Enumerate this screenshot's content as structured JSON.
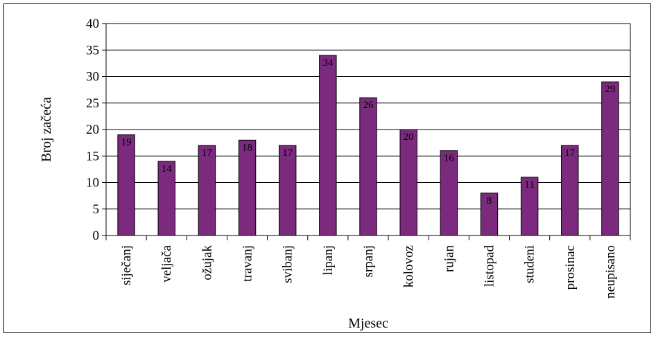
{
  "chart_data": {
    "type": "bar",
    "title": "",
    "xlabel": "Mjesec",
    "ylabel": "Broj začeća",
    "ylim": [
      0,
      40
    ],
    "yticks": [
      0,
      5,
      10,
      15,
      20,
      25,
      30,
      35,
      40
    ],
    "grid": true,
    "legend": "none",
    "categories": [
      "siječanj",
      "veljača",
      "ožujak",
      "travanj",
      "svibanj",
      "lipanj",
      "srpanj",
      "kolovoz",
      "rujan",
      "listopad",
      "studeni",
      "prosinac",
      "neupisano"
    ],
    "values": [
      19,
      14,
      17,
      18,
      17,
      34,
      26,
      20,
      16,
      8,
      11,
      17,
      29
    ],
    "colors": {
      "bar": "#7B2A7E",
      "grid": "#000000",
      "axis": "#000000"
    }
  }
}
